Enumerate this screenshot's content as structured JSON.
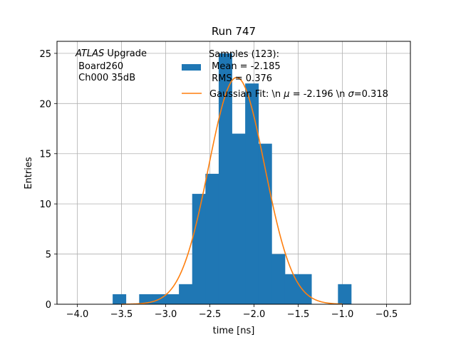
{
  "chart_data": {
    "type": "bar",
    "title": "Run 747",
    "xlabel": "time [ns]",
    "ylabel": "Entries",
    "xlim": [
      -4.23,
      -0.23
    ],
    "ylim": [
      0,
      26.2
    ],
    "grid": true,
    "x_ticks": [
      -4.0,
      -3.5,
      -3.0,
      -2.5,
      -2.0,
      -1.5,
      -1.0,
      -0.5
    ],
    "x_tick_labels": [
      "−4.0",
      "−3.5",
      "−3.0",
      "−2.5",
      "−2.0",
      "−1.5",
      "−1.0",
      "−0.5"
    ],
    "y_ticks": [
      0,
      5,
      10,
      15,
      20,
      25
    ],
    "y_tick_labels": [
      "0",
      "5",
      "10",
      "15",
      "20",
      "25"
    ],
    "bar_color": "#1f77b4",
    "fit_color": "#ff7f0e",
    "bins": [
      {
        "x0": -3.6,
        "x1": -3.45,
        "count": 1
      },
      {
        "x0": -3.3,
        "x1": -3.15,
        "count": 1
      },
      {
        "x0": -3.15,
        "x1": -3.0,
        "count": 1
      },
      {
        "x0": -3.0,
        "x1": -2.85,
        "count": 1
      },
      {
        "x0": -2.85,
        "x1": -2.7,
        "count": 2
      },
      {
        "x0": -2.7,
        "x1": -2.55,
        "count": 11
      },
      {
        "x0": -2.55,
        "x1": -2.4,
        "count": 13
      },
      {
        "x0": -2.4,
        "x1": -2.25,
        "count": 25
      },
      {
        "x0": -2.25,
        "x1": -2.1,
        "count": 17
      },
      {
        "x0": -2.1,
        "x1": -1.95,
        "count": 22
      },
      {
        "x0": -1.95,
        "x1": -1.8,
        "count": 16
      },
      {
        "x0": -1.8,
        "x1": -1.65,
        "count": 5
      },
      {
        "x0": -1.65,
        "x1": -1.5,
        "count": 3
      },
      {
        "x0": -1.5,
        "x1": -1.35,
        "count": 3
      },
      {
        "x0": -1.05,
        "x1": -0.9,
        "count": 2
      }
    ],
    "fit": {
      "mu": -2.196,
      "sigma": 0.318,
      "amplitude": 22.6,
      "x_range": [
        -3.5,
        -1.0
      ]
    },
    "annotation_lines": [
      "Upgrade",
      " Board260",
      " Ch000 35dB"
    ],
    "annotation_italic": "ATLAS",
    "legend": {
      "placement": "upper-center",
      "hist_lines": [
        "Samples (123):",
        " Mean = -2.185",
        " RMS = 0.376"
      ],
      "fit_label_prefix": "Gaussian Fit: \\n ",
      "fit_label_mu_symbol": "μ",
      "fit_label_mid": " = -2.196 \\n ",
      "fit_label_sigma_symbol": "σ",
      "fit_label_suffix": "=0.318"
    }
  }
}
